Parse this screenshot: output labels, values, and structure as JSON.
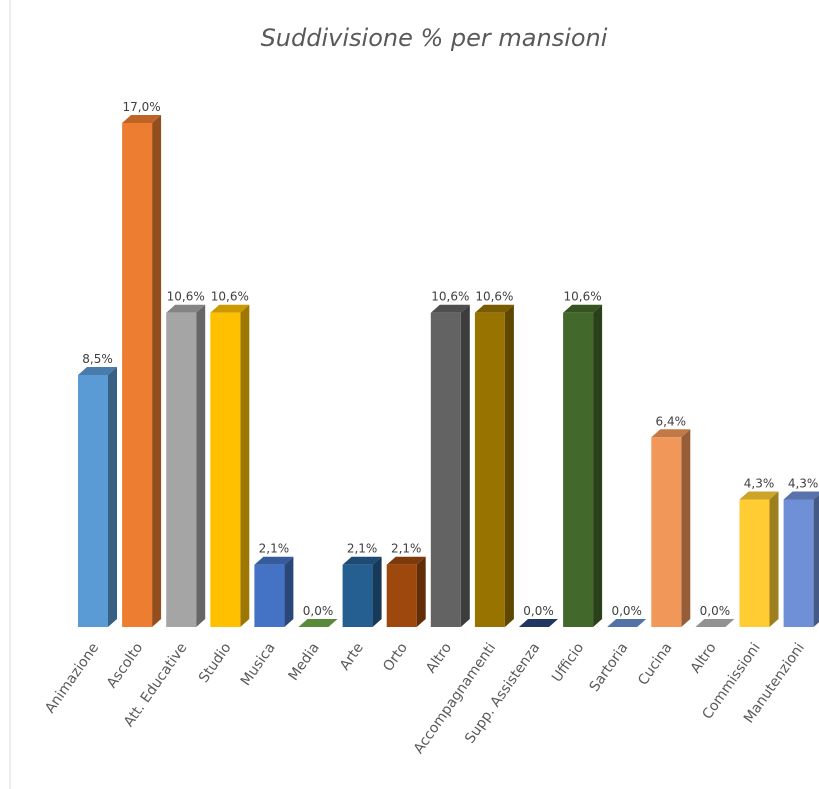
{
  "chart_data": {
    "type": "bar3d",
    "title": "Suddivisione % per mansioni",
    "categories": [
      "Animazione",
      "Ascolto",
      "Att. Educative",
      "Studio",
      "Musica",
      "Media",
      "Arte",
      "Orto",
      "Altro",
      "Accompagnamenti",
      "Supp. Assistenza",
      "Ufficio",
      "Sartoria",
      "Cucina",
      "Altro",
      "Commissioni",
      "Manutenzioni"
    ],
    "values": [
      8.5,
      17.0,
      10.6,
      10.6,
      2.1,
      0.0,
      2.1,
      2.1,
      10.6,
      10.6,
      0.0,
      10.6,
      0.0,
      6.4,
      0.0,
      4.3,
      4.3
    ],
    "value_labels": [
      "8,5%",
      "17,0%",
      "10,6%",
      "10,6%",
      "2,1%",
      "0,0%",
      "2,1%",
      "2,1%",
      "10,6%",
      "10,6%",
      "0,0%",
      "10,6%",
      "0,0%",
      "6,4%",
      "0,0%",
      "4,3%",
      "4,3%"
    ],
    "colors": [
      "#5b9bd5",
      "#ed7d31",
      "#a5a5a5",
      "#ffc000",
      "#4472c4",
      "#70ad47",
      "#255e91",
      "#9e480e",
      "#636363",
      "#997300",
      "#264478",
      "#43682b",
      "#698ed0",
      "#f1975a",
      "#b7b7b7",
      "#ffcd33",
      "#6f8fd6"
    ]
  }
}
